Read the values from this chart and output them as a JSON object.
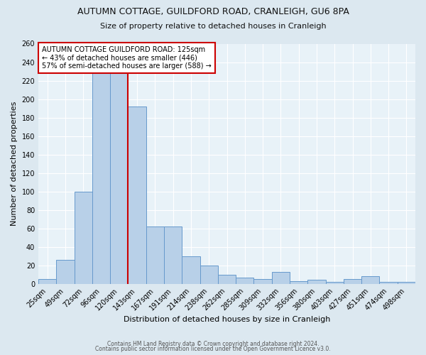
{
  "title": "AUTUMN COTTAGE, GUILDFORD ROAD, CRANLEIGH, GU6 8PA",
  "subtitle": "Size of property relative to detached houses in Cranleigh",
  "xlabel": "Distribution of detached houses by size in Cranleigh",
  "ylabel": "Number of detached properties",
  "categories": [
    "25sqm",
    "49sqm",
    "72sqm",
    "96sqm",
    "120sqm",
    "143sqm",
    "167sqm",
    "191sqm",
    "214sqm",
    "238sqm",
    "262sqm",
    "285sqm",
    "309sqm",
    "332sqm",
    "356sqm",
    "380sqm",
    "403sqm",
    "427sqm",
    "451sqm",
    "474sqm",
    "498sqm"
  ],
  "values": [
    5,
    26,
    100,
    228,
    228,
    192,
    62,
    62,
    30,
    20,
    10,
    7,
    5,
    13,
    3,
    4,
    2,
    5,
    8,
    2,
    2
  ],
  "bar_color": "#b8d0e8",
  "bar_edge_color": "#6699cc",
  "property_line_x": 4.5,
  "property_line_color": "#cc0000",
  "annotation_text": "AUTUMN COTTAGE GUILDFORD ROAD: 125sqm\n← 43% of detached houses are smaller (446)\n57% of semi-detached houses are larger (588) →",
  "annotation_box_color": "#ffffff",
  "annotation_box_edge": "#cc0000",
  "footer_line1": "Contains HM Land Registry data © Crown copyright and database right 2024.",
  "footer_line2": "Contains public sector information licensed under the Open Government Licence v3.0.",
  "bg_color": "#dce8f0",
  "plot_bg_color": "#e8f2f8",
  "grid_color": "#ffffff",
  "ylim": [
    0,
    260
  ],
  "yticks": [
    0,
    20,
    40,
    60,
    80,
    100,
    120,
    140,
    160,
    180,
    200,
    220,
    240,
    260
  ],
  "title_fontsize": 9,
  "subtitle_fontsize": 8,
  "tick_fontsize": 7,
  "ylabel_fontsize": 8,
  "xlabel_fontsize": 8,
  "annotation_fontsize": 7,
  "footer_fontsize": 5.5
}
